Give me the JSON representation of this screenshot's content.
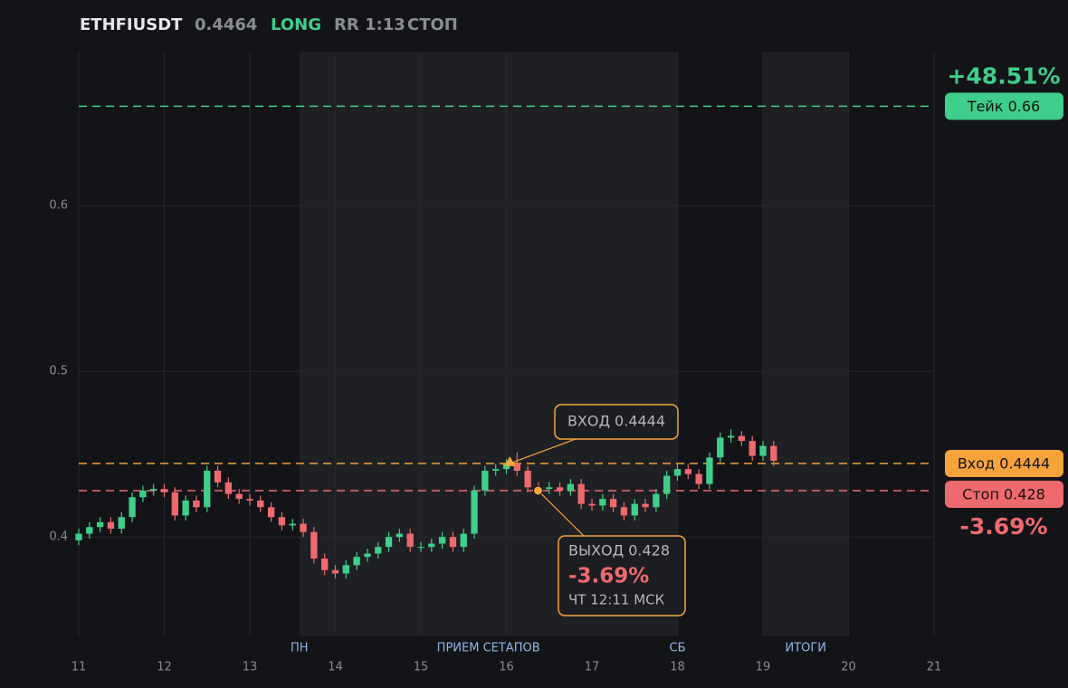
{
  "header": {
    "symbol": "ETHFIUSDT",
    "price": "0.4464",
    "side": "LONG",
    "rr": "RR 1:13",
    "stop": "СТОП"
  },
  "chart_data": {
    "type": "candlestick",
    "x": [
      11,
      11.125,
      11.25,
      11.375,
      11.5,
      11.625,
      11.75,
      11.875,
      12,
      12.125,
      12.25,
      12.375,
      12.5,
      12.625,
      12.75,
      12.875,
      13,
      13.125,
      13.25,
      13.375,
      13.5,
      13.625,
      13.75,
      13.875,
      14,
      14.125,
      14.25,
      14.375,
      14.5,
      14.625,
      14.75,
      14.875,
      15,
      15.125,
      15.25,
      15.375,
      15.5,
      15.625,
      15.75,
      15.875,
      16,
      16.125,
      16.25,
      16.375,
      16.5,
      16.625,
      16.75,
      16.875,
      17,
      17.125,
      17.25,
      17.375,
      17.5,
      17.625,
      17.75,
      17.875,
      18,
      18.125,
      18.25,
      18.375,
      18.5,
      18.625,
      18.75,
      18.875,
      19,
      19.125
    ],
    "open": [
      0.398,
      0.402,
      0.406,
      0.409,
      0.405,
      0.412,
      0.424,
      0.428,
      0.429,
      0.427,
      0.413,
      0.422,
      0.418,
      0.44,
      0.433,
      0.426,
      0.423,
      0.422,
      0.418,
      0.412,
      0.407,
      0.408,
      0.403,
      0.387,
      0.38,
      0.378,
      0.383,
      0.388,
      0.39,
      0.394,
      0.4,
      0.402,
      0.394,
      0.394,
      0.396,
      0.4,
      0.394,
      0.402,
      0.428,
      0.44,
      0.441,
      0.444,
      0.44,
      0.43,
      0.429,
      0.43,
      0.428,
      0.432,
      0.42,
      0.419,
      0.423,
      0.418,
      0.413,
      0.42,
      0.418,
      0.426,
      0.437,
      0.441,
      0.438,
      0.432,
      0.448,
      0.46,
      0.461,
      0.458,
      0.449,
      0.455
    ],
    "high": [
      0.405,
      0.409,
      0.412,
      0.412,
      0.415,
      0.427,
      0.431,
      0.432,
      0.432,
      0.43,
      0.425,
      0.425,
      0.443,
      0.443,
      0.436,
      0.429,
      0.426,
      0.425,
      0.421,
      0.415,
      0.411,
      0.411,
      0.406,
      0.39,
      0.383,
      0.386,
      0.391,
      0.393,
      0.397,
      0.403,
      0.405,
      0.405,
      0.397,
      0.399,
      0.403,
      0.403,
      0.405,
      0.431,
      0.443,
      0.444,
      0.447,
      0.451,
      0.443,
      0.433,
      0.433,
      0.433,
      0.435,
      0.435,
      0.423,
      0.426,
      0.426,
      0.421,
      0.423,
      0.423,
      0.429,
      0.44,
      0.444,
      0.444,
      0.441,
      0.451,
      0.463,
      0.465,
      0.464,
      0.461,
      0.458,
      0.458
    ],
    "low": [
      0.395,
      0.399,
      0.403,
      0.402,
      0.402,
      0.409,
      0.421,
      0.425,
      0.424,
      0.41,
      0.41,
      0.415,
      0.415,
      0.43,
      0.423,
      0.42,
      0.419,
      0.415,
      0.409,
      0.404,
      0.404,
      0.4,
      0.384,
      0.377,
      0.375,
      0.375,
      0.38,
      0.385,
      0.387,
      0.391,
      0.397,
      0.391,
      0.391,
      0.391,
      0.393,
      0.391,
      0.391,
      0.399,
      0.425,
      0.437,
      0.438,
      0.437,
      0.427,
      0.426,
      0.426,
      0.425,
      0.425,
      0.417,
      0.416,
      0.416,
      0.415,
      0.41,
      0.41,
      0.415,
      0.415,
      0.423,
      0.434,
      0.435,
      0.429,
      0.429,
      0.445,
      0.457,
      0.455,
      0.446,
      0.446,
      0.443
    ],
    "close": [
      0.402,
      0.406,
      0.409,
      0.405,
      0.412,
      0.424,
      0.428,
      0.429,
      0.427,
      0.413,
      0.422,
      0.418,
      0.44,
      0.433,
      0.426,
      0.423,
      0.422,
      0.418,
      0.412,
      0.407,
      0.408,
      0.403,
      0.387,
      0.38,
      0.378,
      0.383,
      0.388,
      0.39,
      0.394,
      0.4,
      0.402,
      0.394,
      0.394,
      0.396,
      0.4,
      0.394,
      0.402,
      0.428,
      0.44,
      0.441,
      0.444,
      0.44,
      0.43,
      0.429,
      0.43,
      0.428,
      0.432,
      0.42,
      0.419,
      0.423,
      0.418,
      0.413,
      0.42,
      0.418,
      0.426,
      0.437,
      0.441,
      0.438,
      0.432,
      0.448,
      0.46,
      0.461,
      0.458,
      0.449,
      0.455,
      0.446
    ],
    "up_color": "#3fcf8a",
    "down_color": "#ef6a6e",
    "xlim": [
      11,
      21
    ],
    "xticks": [
      11,
      12,
      13,
      14,
      15,
      16,
      17,
      18,
      19,
      20,
      21
    ],
    "ylim": [
      0.34,
      0.693
    ],
    "yticks": [
      0.4,
      0.5,
      0.6
    ],
    "grid": true,
    "bands": [
      {
        "from": 13.58,
        "to": 18
      },
      {
        "from": 19,
        "to": 20
      }
    ],
    "band_labels": [
      {
        "x": 13.58,
        "label": "ПН"
      },
      {
        "x": 15.79,
        "label": "ПРИЕМ СЕТАПОВ"
      },
      {
        "x": 18,
        "label": "СБ"
      },
      {
        "x": 19.5,
        "label": "ИТОГИ"
      }
    ],
    "levels": [
      {
        "value": 0.66,
        "label": "Тейк 0.66",
        "color": "#3fcf8a"
      },
      {
        "value": 0.4444,
        "label": "Вход 0.4444",
        "color": "#f5a33b"
      },
      {
        "value": 0.428,
        "label": "Стоп 0.428",
        "color": "#ef6a6e"
      }
    ],
    "take_pct": {
      "value": 48.51,
      "label": "+48.51%"
    },
    "stop_pct": {
      "value": -3.69,
      "label": "-3.69%"
    },
    "entry": {
      "x": 16.04,
      "y": 0.4444,
      "label": "ВХОД 0.4444"
    },
    "exit": {
      "x": 16.37,
      "y": 0.428,
      "label": "ВЫХОД 0.428",
      "pct": {
        "value": -3.69,
        "label": "-3.69%"
      },
      "time": "ЧТ 12:11 МСК"
    }
  }
}
